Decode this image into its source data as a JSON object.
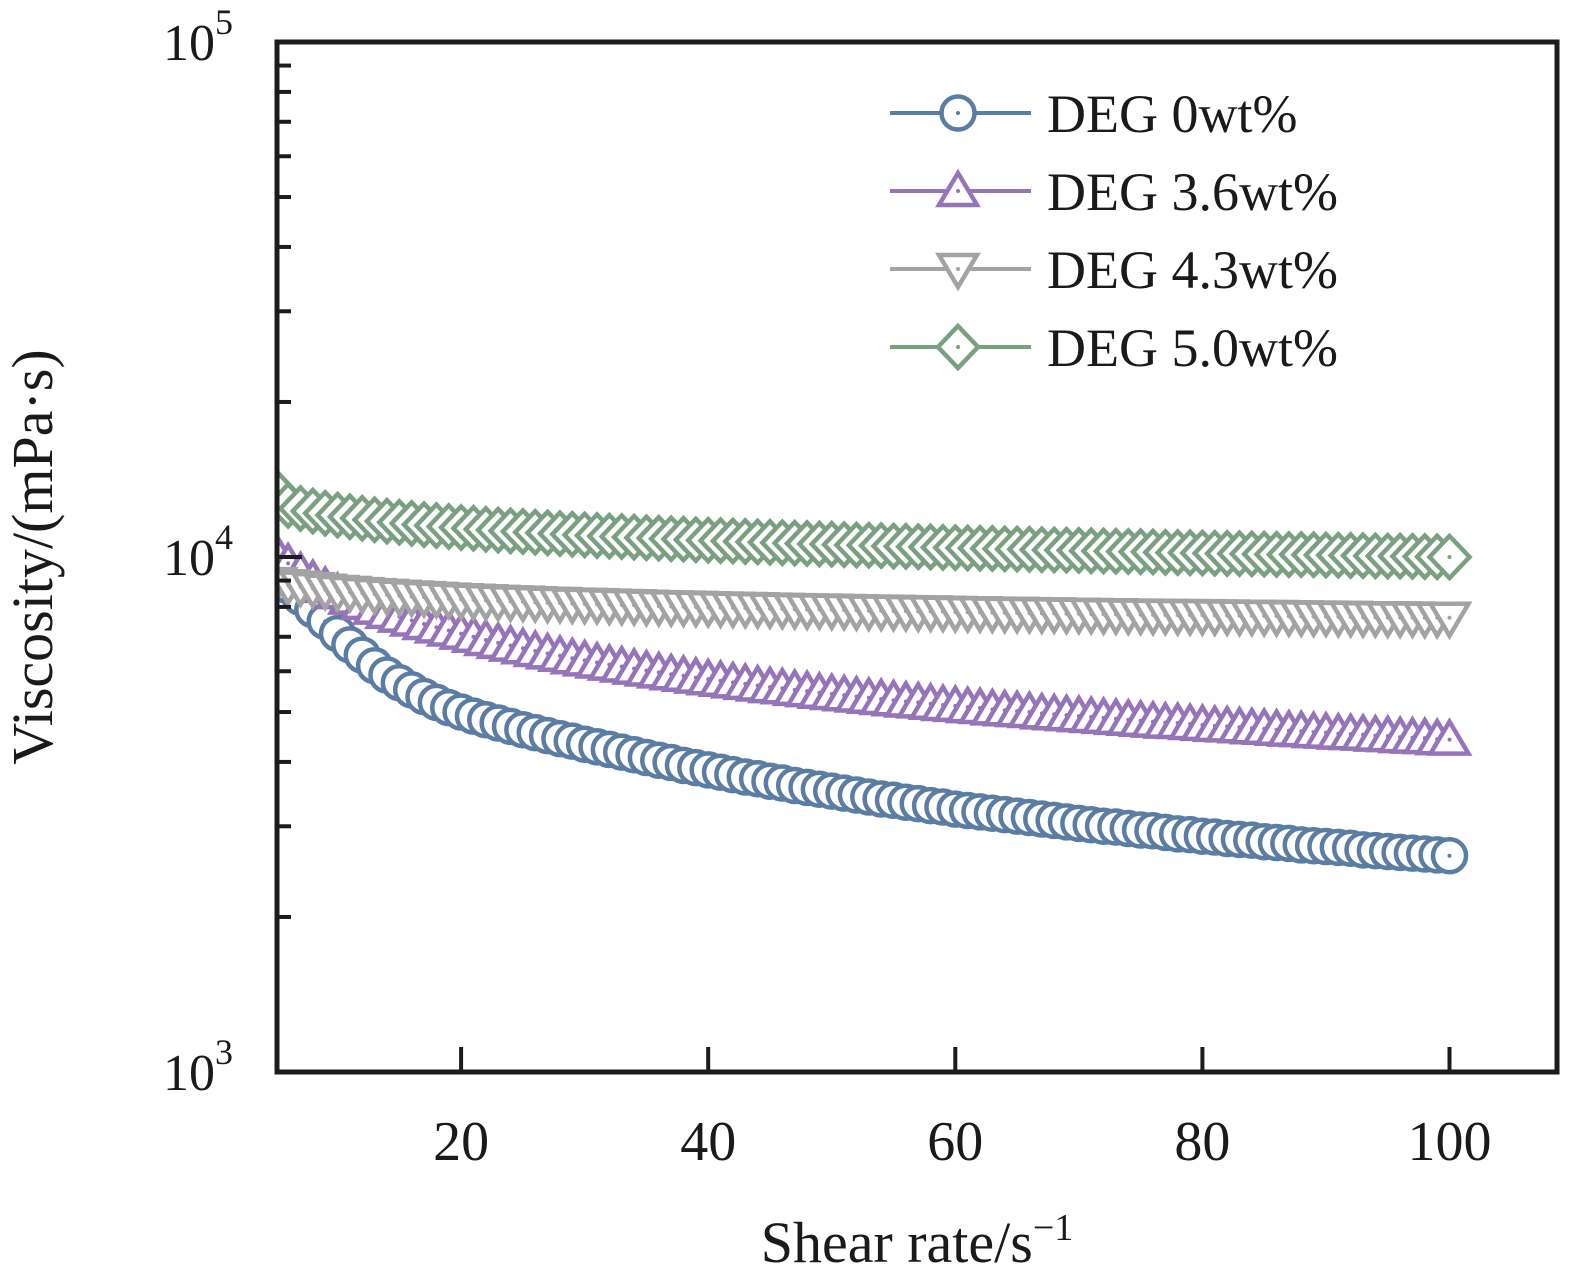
{
  "chart_data": {
    "type": "line",
    "title": "",
    "xlabel_base": "Shear rate/s",
    "xlabel_sup": "−1",
    "ylabel": "Viscosity/(mPa·s)",
    "legend_position": "top-right-inside",
    "grid": false,
    "x_axis": {
      "min": 5.1,
      "max": 108.7,
      "ticks": [
        20,
        40,
        60,
        80,
        100
      ]
    },
    "y_axis": {
      "scale": "log",
      "min": 1000,
      "max": 100000,
      "tick_values": [
        1000,
        10000,
        100000
      ],
      "tick_labels": [
        {
          "base": "10",
          "exp": "3"
        },
        {
          "base": "10",
          "exp": "4"
        },
        {
          "base": "10",
          "exp": "5"
        }
      ],
      "minor_tick_mantissas": [
        2,
        3,
        4,
        5,
        6,
        7,
        8,
        9
      ]
    },
    "x_start": 5,
    "x_step": 1,
    "series": [
      {
        "name": "DEG 0wt%",
        "marker": "circle",
        "color": "#5b7da4",
        "values": [
          9300,
          8800,
          8350,
          7900,
          7500,
          7100,
          6750,
          6450,
          6150,
          5900,
          5700,
          5520,
          5360,
          5220,
          5100,
          5000,
          4910,
          4830,
          4760,
          4690,
          4620,
          4560,
          4500,
          4440,
          4390,
          4330,
          4280,
          4230,
          4180,
          4130,
          4080,
          4030,
          3990,
          3940,
          3900,
          3860,
          3820,
          3780,
          3740,
          3710,
          3670,
          3640,
          3600,
          3570,
          3540,
          3510,
          3480,
          3450,
          3420,
          3390,
          3370,
          3340,
          3320,
          3290,
          3270,
          3240,
          3220,
          3200,
          3180,
          3160,
          3140,
          3120,
          3100,
          3080,
          3060,
          3040,
          3020,
          3000,
          2990,
          2970,
          2950,
          2940,
          2920,
          2900,
          2890,
          2870,
          2860,
          2840,
          2830,
          2820,
          2800,
          2790,
          2780,
          2760,
          2750,
          2740,
          2730,
          2720,
          2700,
          2690,
          2680,
          2670,
          2660,
          2650,
          2640,
          2630
        ]
      },
      {
        "name": "DEG 3.6wt%",
        "marker": "triangle-up",
        "color": "#9574ba",
        "values": [
          10200,
          9720,
          9340,
          9020,
          8750,
          8510,
          8300,
          8110,
          7940,
          7790,
          7660,
          7530,
          7410,
          7300,
          7200,
          7100,
          7000,
          6900,
          6810,
          6730,
          6650,
          6570,
          6500,
          6430,
          6360,
          6300,
          6240,
          6180,
          6130,
          6070,
          6020,
          5970,
          5920,
          5880,
          5830,
          5790,
          5750,
          5710,
          5670,
          5630,
          5590,
          5560,
          5520,
          5490,
          5450,
          5420,
          5390,
          5360,
          5330,
          5300,
          5270,
          5240,
          5220,
          5190,
          5160,
          5140,
          5110,
          5090,
          5060,
          5040,
          5020,
          5000,
          4970,
          4950,
          4930,
          4910,
          4890,
          4870,
          4850,
          4830,
          4810,
          4790,
          4770,
          4760,
          4740,
          4720,
          4700,
          4690,
          4670,
          4650,
          4640,
          4620,
          4600,
          4590,
          4570,
          4560,
          4540,
          4530,
          4520,
          4500,
          4490,
          4470,
          4460,
          4450,
          4430,
          4420
        ]
      },
      {
        "name": "DEG 4.3wt%",
        "marker": "triangle-down",
        "color": "#a3a3a3",
        "values": [
          8900,
          8820,
          8760,
          8700,
          8640,
          8590,
          8550,
          8510,
          8470,
          8440,
          8410,
          8380,
          8360,
          8330,
          8300,
          8280,
          8260,
          8240,
          8220,
          8200,
          8190,
          8170,
          8150,
          8140,
          8120,
          8110,
          8100,
          8080,
          8070,
          8060,
          8040,
          8030,
          8020,
          8010,
          8000,
          7990,
          7980,
          7970,
          7960,
          7950,
          7940,
          7930,
          7920,
          7910,
          7910,
          7900,
          7890,
          7880,
          7870,
          7870,
          7860,
          7850,
          7840,
          7840,
          7830,
          7820,
          7810,
          7810,
          7800,
          7790,
          7790,
          7780,
          7770,
          7770,
          7760,
          7760,
          7750,
          7740,
          7740,
          7730,
          7730,
          7720,
          7720,
          7710,
          7710,
          7710,
          7700,
          7700,
          7690,
          7690,
          7680,
          7680,
          7670,
          7670,
          7660,
          7660,
          7650,
          7650,
          7640,
          7640,
          7630,
          7630,
          7630,
          7620,
          7620,
          7620
        ]
      },
      {
        "name": "DEG 5.0wt%",
        "marker": "diamond",
        "color": "#79a07f",
        "values": [
          13400,
          12600,
          12420,
          12280,
          12160,
          12060,
          11970,
          11890,
          11810,
          11740,
          11680,
          11620,
          11560,
          11510,
          11460,
          11410,
          11370,
          11320,
          11280,
          11240,
          11210,
          11170,
          11140,
          11100,
          11070,
          11040,
          11010,
          10980,
          10960,
          10930,
          10900,
          10880,
          10850,
          10830,
          10800,
          10780,
          10760,
          10740,
          10720,
          10700,
          10680,
          10660,
          10640,
          10620,
          10600,
          10590,
          10570,
          10550,
          10540,
          10520,
          10500,
          10490,
          10470,
          10460,
          10440,
          10430,
          10410,
          10400,
          10390,
          10370,
          10360,
          10350,
          10330,
          10320,
          10310,
          10300,
          10280,
          10270,
          10260,
          10250,
          10240,
          10230,
          10210,
          10200,
          10190,
          10180,
          10170,
          10160,
          10150,
          10140,
          10130,
          10120,
          10110,
          10110,
          10100,
          10090,
          10080,
          10070,
          10060,
          10050,
          10040,
          10040,
          10030,
          10020,
          10010,
          10000
        ]
      }
    ]
  }
}
